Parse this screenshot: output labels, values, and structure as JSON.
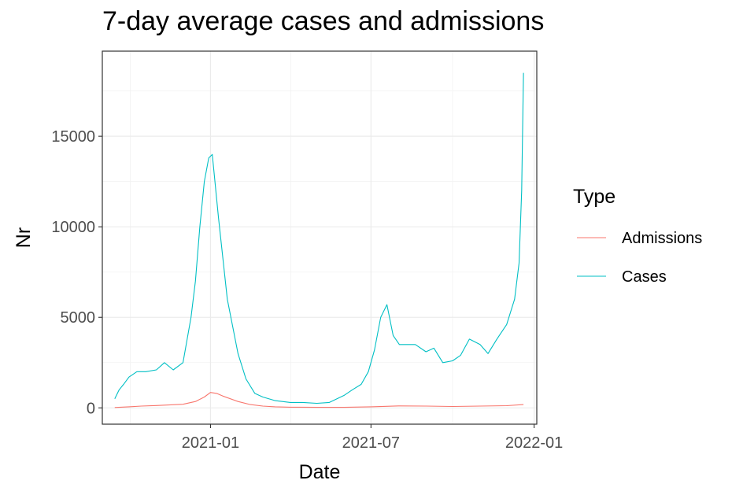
{
  "chart_data": {
    "type": "line",
    "title": "7-day average cases and admissions",
    "xlabel": "Date",
    "ylabel": "Nr",
    "legend_title": "Type",
    "legend_position": "right",
    "grid": true,
    "xlim": [
      "2020-09-01",
      "2022-01-04"
    ],
    "ylim": [
      -900,
      19700
    ],
    "x_ticks": [
      {
        "date": "2021-01-01",
        "label": "2021-01"
      },
      {
        "date": "2021-07-01",
        "label": "2021-07"
      },
      {
        "date": "2022-01-01",
        "label": "2022-01"
      }
    ],
    "y_ticks": [
      {
        "value": 0,
        "label": "0"
      },
      {
        "value": 5000,
        "label": "5000"
      },
      {
        "value": 10000,
        "label": "10000"
      },
      {
        "value": 15000,
        "label": "15000"
      }
    ],
    "series": [
      {
        "name": "Admissions",
        "color": "#F8766D",
        "x": [
          "2020-09-15",
          "2020-10-01",
          "2020-10-15",
          "2020-11-01",
          "2020-11-15",
          "2020-12-01",
          "2020-12-15",
          "2020-12-25",
          "2021-01-01",
          "2021-01-08",
          "2021-01-15",
          "2021-02-01",
          "2021-02-15",
          "2021-03-01",
          "2021-03-15",
          "2021-04-01",
          "2021-05-01",
          "2021-06-01",
          "2021-07-01",
          "2021-08-01",
          "2021-09-01",
          "2021-10-01",
          "2021-11-01",
          "2021-12-01",
          "2021-12-20"
        ],
        "y": [
          20,
          60,
          100,
          130,
          160,
          200,
          350,
          600,
          850,
          800,
          650,
          350,
          180,
          100,
          60,
          40,
          30,
          30,
          60,
          110,
          100,
          80,
          100,
          120,
          180
        ]
      },
      {
        "name": "Cases",
        "color": "#00BFC4",
        "x": [
          "2020-09-15",
          "2020-09-20",
          "2020-09-25",
          "2020-10-01",
          "2020-10-10",
          "2020-10-20",
          "2020-11-01",
          "2020-11-10",
          "2020-11-20",
          "2020-12-01",
          "2020-12-10",
          "2020-12-15",
          "2020-12-20",
          "2020-12-25",
          "2020-12-30",
          "2021-01-03",
          "2021-01-10",
          "2021-01-20",
          "2021-02-01",
          "2021-02-10",
          "2021-02-20",
          "2021-03-01",
          "2021-03-15",
          "2021-04-01",
          "2021-04-15",
          "2021-05-01",
          "2021-05-15",
          "2021-06-01",
          "2021-06-10",
          "2021-06-20",
          "2021-06-28",
          "2021-07-05",
          "2021-07-12",
          "2021-07-19",
          "2021-07-26",
          "2021-08-02",
          "2021-08-10",
          "2021-08-20",
          "2021-09-01",
          "2021-09-10",
          "2021-09-20",
          "2021-10-01",
          "2021-10-10",
          "2021-10-20",
          "2021-11-01",
          "2021-11-10",
          "2021-11-20",
          "2021-12-01",
          "2021-12-10",
          "2021-12-15",
          "2021-12-18",
          "2021-12-20"
        ],
        "y": [
          500,
          1000,
          1300,
          1700,
          2000,
          2000,
          2100,
          2500,
          2100,
          2500,
          5000,
          7000,
          10000,
          12500,
          13800,
          14000,
          10500,
          6000,
          3000,
          1600,
          800,
          600,
          400,
          300,
          300,
          250,
          300,
          700,
          1000,
          1300,
          2000,
          3200,
          5000,
          5700,
          4000,
          3500,
          3500,
          3500,
          3100,
          3300,
          2500,
          2600,
          2900,
          3800,
          3500,
          3000,
          3800,
          4600,
          6000,
          8000,
          12000,
          18500
        ]
      }
    ]
  }
}
